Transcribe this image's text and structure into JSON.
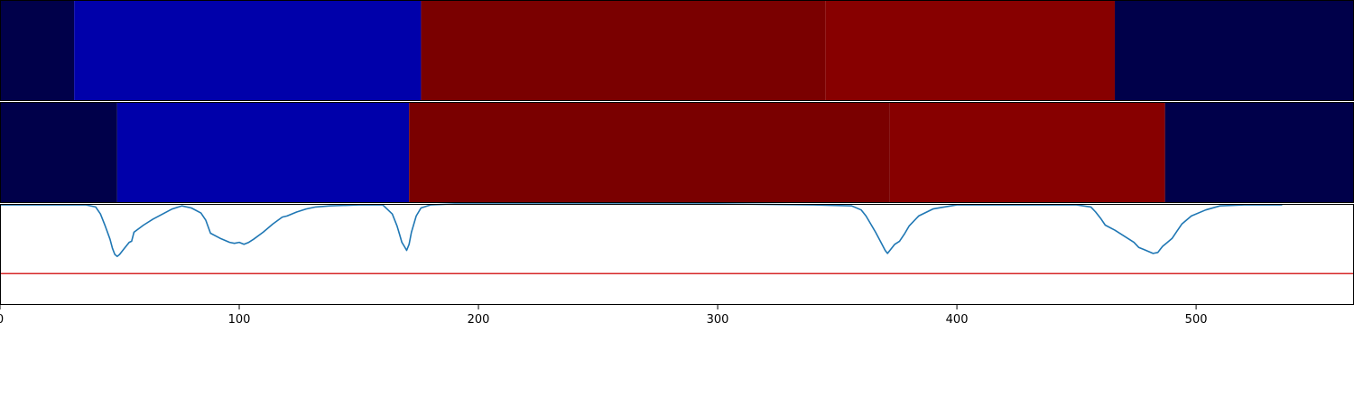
{
  "chart_data": {
    "type": "heatmap",
    "title": "",
    "xlabel": "",
    "ylabel": "",
    "xlim": [
      0,
      566
    ],
    "x_ticks": [
      "0",
      "100",
      "200",
      "300",
      "400",
      "500"
    ],
    "x_tick_values": [
      0,
      100,
      200,
      300,
      400,
      500
    ],
    "band_rows": [
      {
        "segments": [
          {
            "start": 0,
            "end": 31,
            "color": "#00004a"
          },
          {
            "start": 31,
            "end": 176,
            "color": "#0000aa"
          },
          {
            "start": 176,
            "end": 345,
            "color": "#7a0000"
          },
          {
            "start": 345,
            "end": 466,
            "color": "#870000"
          },
          {
            "start": 466,
            "end": 566,
            "color": "#00004a"
          }
        ]
      },
      {
        "segments": [
          {
            "start": 0,
            "end": 49,
            "color": "#00004a"
          },
          {
            "start": 49,
            "end": 171,
            "color": "#0000aa"
          },
          {
            "start": 171,
            "end": 372,
            "color": "#7a0000"
          },
          {
            "start": 372,
            "end": 487,
            "color": "#870000"
          },
          {
            "start": 487,
            "end": 566,
            "color": "#00004a"
          }
        ]
      }
    ],
    "line_panel": {
      "ylim": [
        0,
        1
      ],
      "threshold": 0.31,
      "threshold_color": "#d62728",
      "line_color": "#1f77b4",
      "x": [
        0,
        36,
        40,
        42,
        44,
        46,
        47,
        48,
        49,
        50,
        52,
        54,
        55,
        56,
        60,
        64,
        68,
        72,
        76,
        80,
        84,
        86,
        88,
        92,
        96,
        98,
        100,
        102,
        104,
        106,
        110,
        114,
        118,
        120,
        124,
        128,
        132,
        138,
        150,
        160,
        164,
        166,
        167,
        168,
        169,
        170,
        171,
        172,
        174,
        176,
        180,
        190,
        200,
        300,
        340,
        356,
        360,
        362,
        364,
        366,
        368,
        370,
        371,
        372,
        374,
        376,
        378,
        380,
        384,
        390,
        400,
        450,
        456,
        458,
        460,
        462,
        466,
        470,
        474,
        476,
        478,
        480,
        482,
        484,
        485,
        486,
        488,
        490,
        492,
        494,
        498,
        504,
        510,
        520,
        536
      ],
      "y": [
        0.99,
        0.99,
        0.97,
        0.9,
        0.78,
        0.65,
        0.56,
        0.5,
        0.48,
        0.5,
        0.56,
        0.62,
        0.63,
        0.72,
        0.79,
        0.85,
        0.9,
        0.95,
        0.98,
        0.96,
        0.91,
        0.84,
        0.71,
        0.66,
        0.62,
        0.61,
        0.62,
        0.6,
        0.62,
        0.65,
        0.72,
        0.8,
        0.87,
        0.88,
        0.92,
        0.95,
        0.97,
        0.98,
        0.99,
        0.99,
        0.9,
        0.78,
        0.7,
        0.62,
        0.58,
        0.54,
        0.6,
        0.72,
        0.88,
        0.96,
        0.99,
        1.0,
        1.0,
        1.0,
        0.99,
        0.98,
        0.94,
        0.88,
        0.8,
        0.72,
        0.63,
        0.54,
        0.51,
        0.54,
        0.6,
        0.63,
        0.7,
        0.78,
        0.88,
        0.95,
        0.99,
        0.99,
        0.97,
        0.92,
        0.86,
        0.79,
        0.74,
        0.68,
        0.62,
        0.57,
        0.55,
        0.53,
        0.51,
        0.52,
        0.55,
        0.58,
        0.62,
        0.66,
        0.73,
        0.8,
        0.88,
        0.94,
        0.98,
        0.99,
        0.99
      ]
    }
  }
}
